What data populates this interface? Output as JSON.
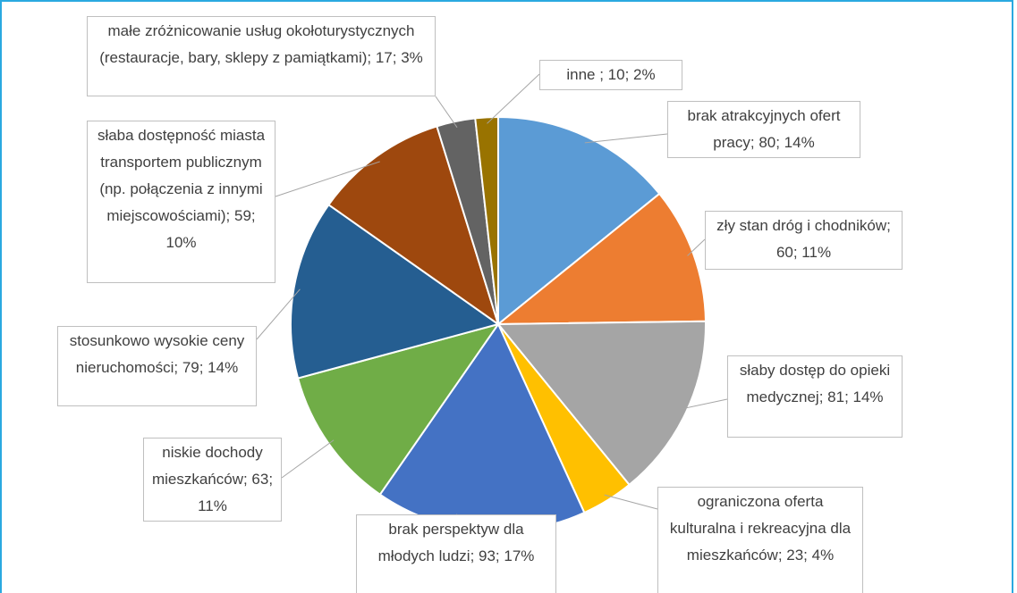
{
  "chart_data": {
    "type": "pie",
    "values": [
      80,
      60,
      81,
      23,
      93,
      63,
      79,
      59,
      17,
      10
    ],
    "value_labels": [
      "brak atrakcyjnych ofert pracy; 80; 14%",
      "zły stan dróg i chodników; 60; 11%",
      "słaby dostęp do opieki medycznej; 81; 14%",
      "ograniczona oferta kulturalna i rekreacyjna dla mieszkańców; 23; 4%",
      "brak perspektyw dla młodych ludzi; 93; 17%",
      "niskie dochody mieszkańców; 63; 11%",
      "stosunkowo wysokie ceny nieruchomości; 79; 14%",
      "słaba dostępność miasta transportem publicznym (np. połączenia z innymi miejscowościami); 59; 10%",
      "małe zróżnicowanie usług okołoturystycznych (restauracje, bary, sklepy z pamiątkami); 17; 3%",
      "inne ; 10; 2%"
    ],
    "colors": [
      "#5b9bd5",
      "#ed7d31",
      "#a5a5a5",
      "#ffc000",
      "#4472c4",
      "#70ad47",
      "#255e91",
      "#9e480e",
      "#636363",
      "#997300"
    ]
  }
}
